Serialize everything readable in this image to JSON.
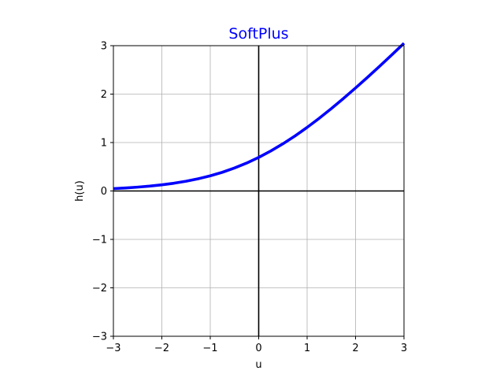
{
  "chart_data": {
    "type": "line",
    "title": "SoftPlus",
    "title_color": "#0000ff",
    "xlabel": "u",
    "ylabel": "h(u)",
    "xlim": [
      -3,
      3
    ],
    "ylim": [
      -3,
      3
    ],
    "x_ticks": [
      -3,
      -2,
      -1,
      0,
      1,
      2,
      3
    ],
    "y_ticks": [
      -3,
      -2,
      -1,
      0,
      1,
      2,
      3
    ],
    "x_tick_labels": [
      "−3",
      "−2",
      "−1",
      "0",
      "1",
      "2",
      "3"
    ],
    "y_tick_labels": [
      "−3",
      "−2",
      "−1",
      "0",
      "1",
      "2",
      "3"
    ],
    "grid": true,
    "zero_lines": true,
    "series": [
      {
        "color": "#0000ff",
        "x": [
          -3,
          -2.75,
          -2.5,
          -2.25,
          -2,
          -1.75,
          -1.5,
          -1.25,
          -1,
          -0.75,
          -0.5,
          -0.25,
          0,
          0.25,
          0.5,
          0.75,
          1,
          1.25,
          1.5,
          1.75,
          2,
          2.25,
          2.5,
          2.75,
          3
        ],
        "y": [
          0.049,
          0.062,
          0.079,
          0.1,
          0.127,
          0.16,
          0.201,
          0.252,
          0.313,
          0.386,
          0.474,
          0.576,
          0.693,
          0.826,
          0.974,
          1.136,
          1.313,
          1.502,
          1.701,
          1.91,
          2.127,
          2.35,
          2.579,
          2.812,
          3.049
        ]
      }
    ]
  }
}
